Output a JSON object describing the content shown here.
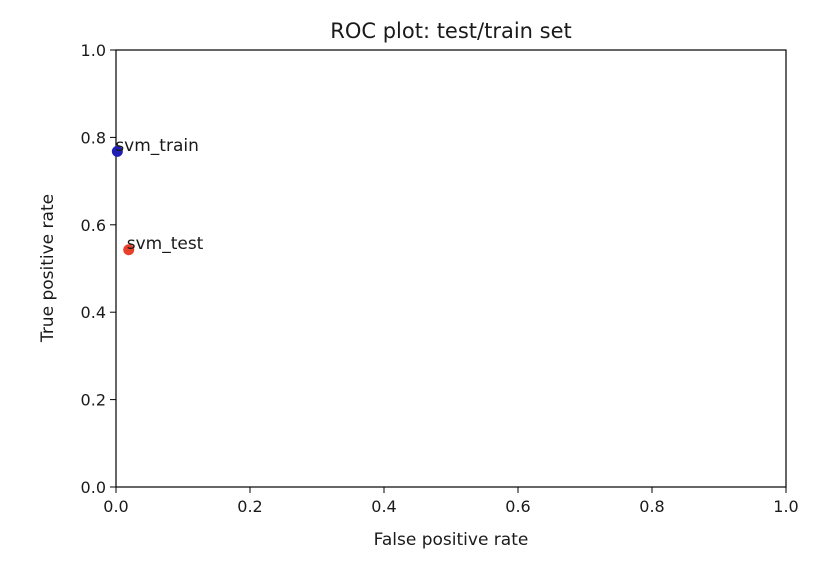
{
  "chart_data": {
    "type": "scatter",
    "title": "ROC plot: test/train set",
    "xlabel": "False positive rate",
    "ylabel": "True positive rate",
    "xlim": [
      0,
      1
    ],
    "ylim": [
      0,
      1
    ],
    "xticks": [
      "0.0",
      "0.2",
      "0.4",
      "0.6",
      "0.8",
      "1.0"
    ],
    "yticks": [
      "0.0",
      "0.2",
      "0.4",
      "0.6",
      "0.8",
      "1.0"
    ],
    "grid": false,
    "points": [
      {
        "label": "svm_train",
        "x": 0.002,
        "y": 0.768,
        "color": "#1f1fb4"
      },
      {
        "label": "svm_test",
        "x": 0.019,
        "y": 0.543,
        "color": "#e8402a"
      }
    ]
  }
}
